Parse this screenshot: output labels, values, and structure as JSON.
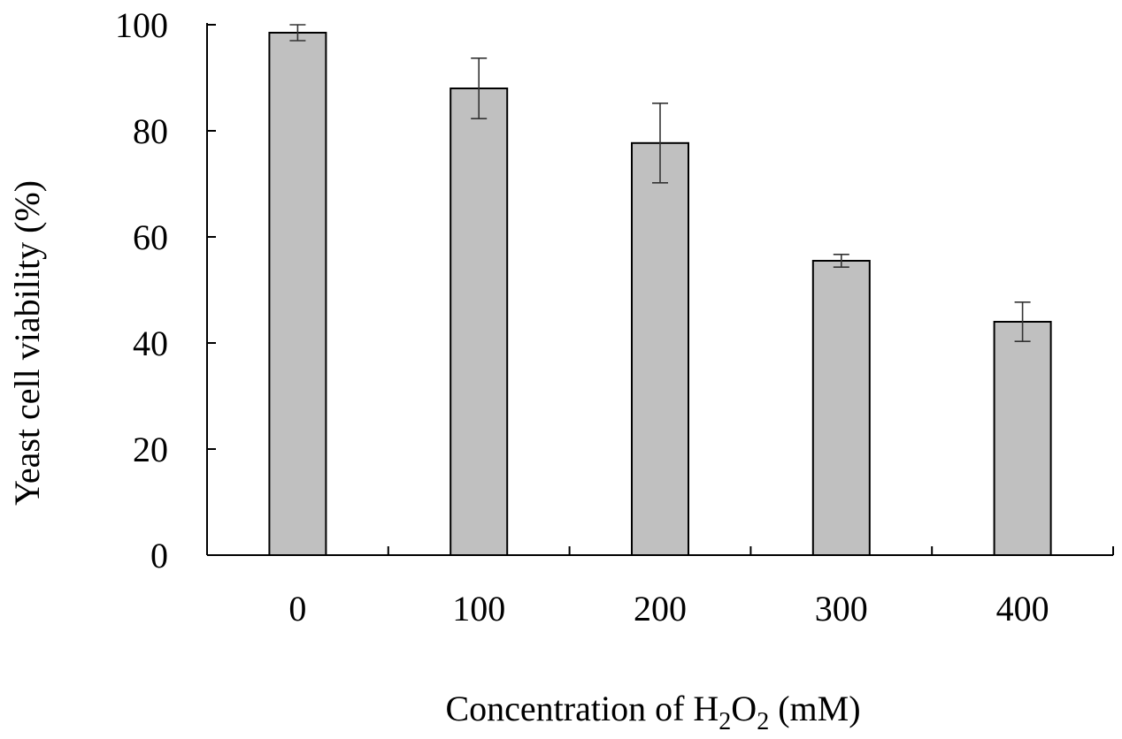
{
  "chart_data": {
    "type": "bar",
    "categories": [
      "0",
      "100",
      "200",
      "300",
      "400"
    ],
    "series": [
      {
        "values": [
          98.5,
          88,
          77.7,
          55.5,
          44
        ],
        "error": [
          1.5,
          5.7,
          7.5,
          1.2,
          3.7
        ]
      }
    ],
    "title": "",
    "xlabel": {
      "prefix": "Concentration of H",
      "sub1": "2",
      "mid": "O",
      "sub2": "2",
      "suffix": " (mM)"
    },
    "ylabel": "Yeast cell viability (%)",
    "ylim": [
      0,
      100
    ],
    "yticks": [
      0,
      20,
      40,
      60,
      80,
      100
    ],
    "grid": false,
    "legend": "none",
    "bar_color": "#c0c0c0",
    "edge_color": "#000000"
  }
}
